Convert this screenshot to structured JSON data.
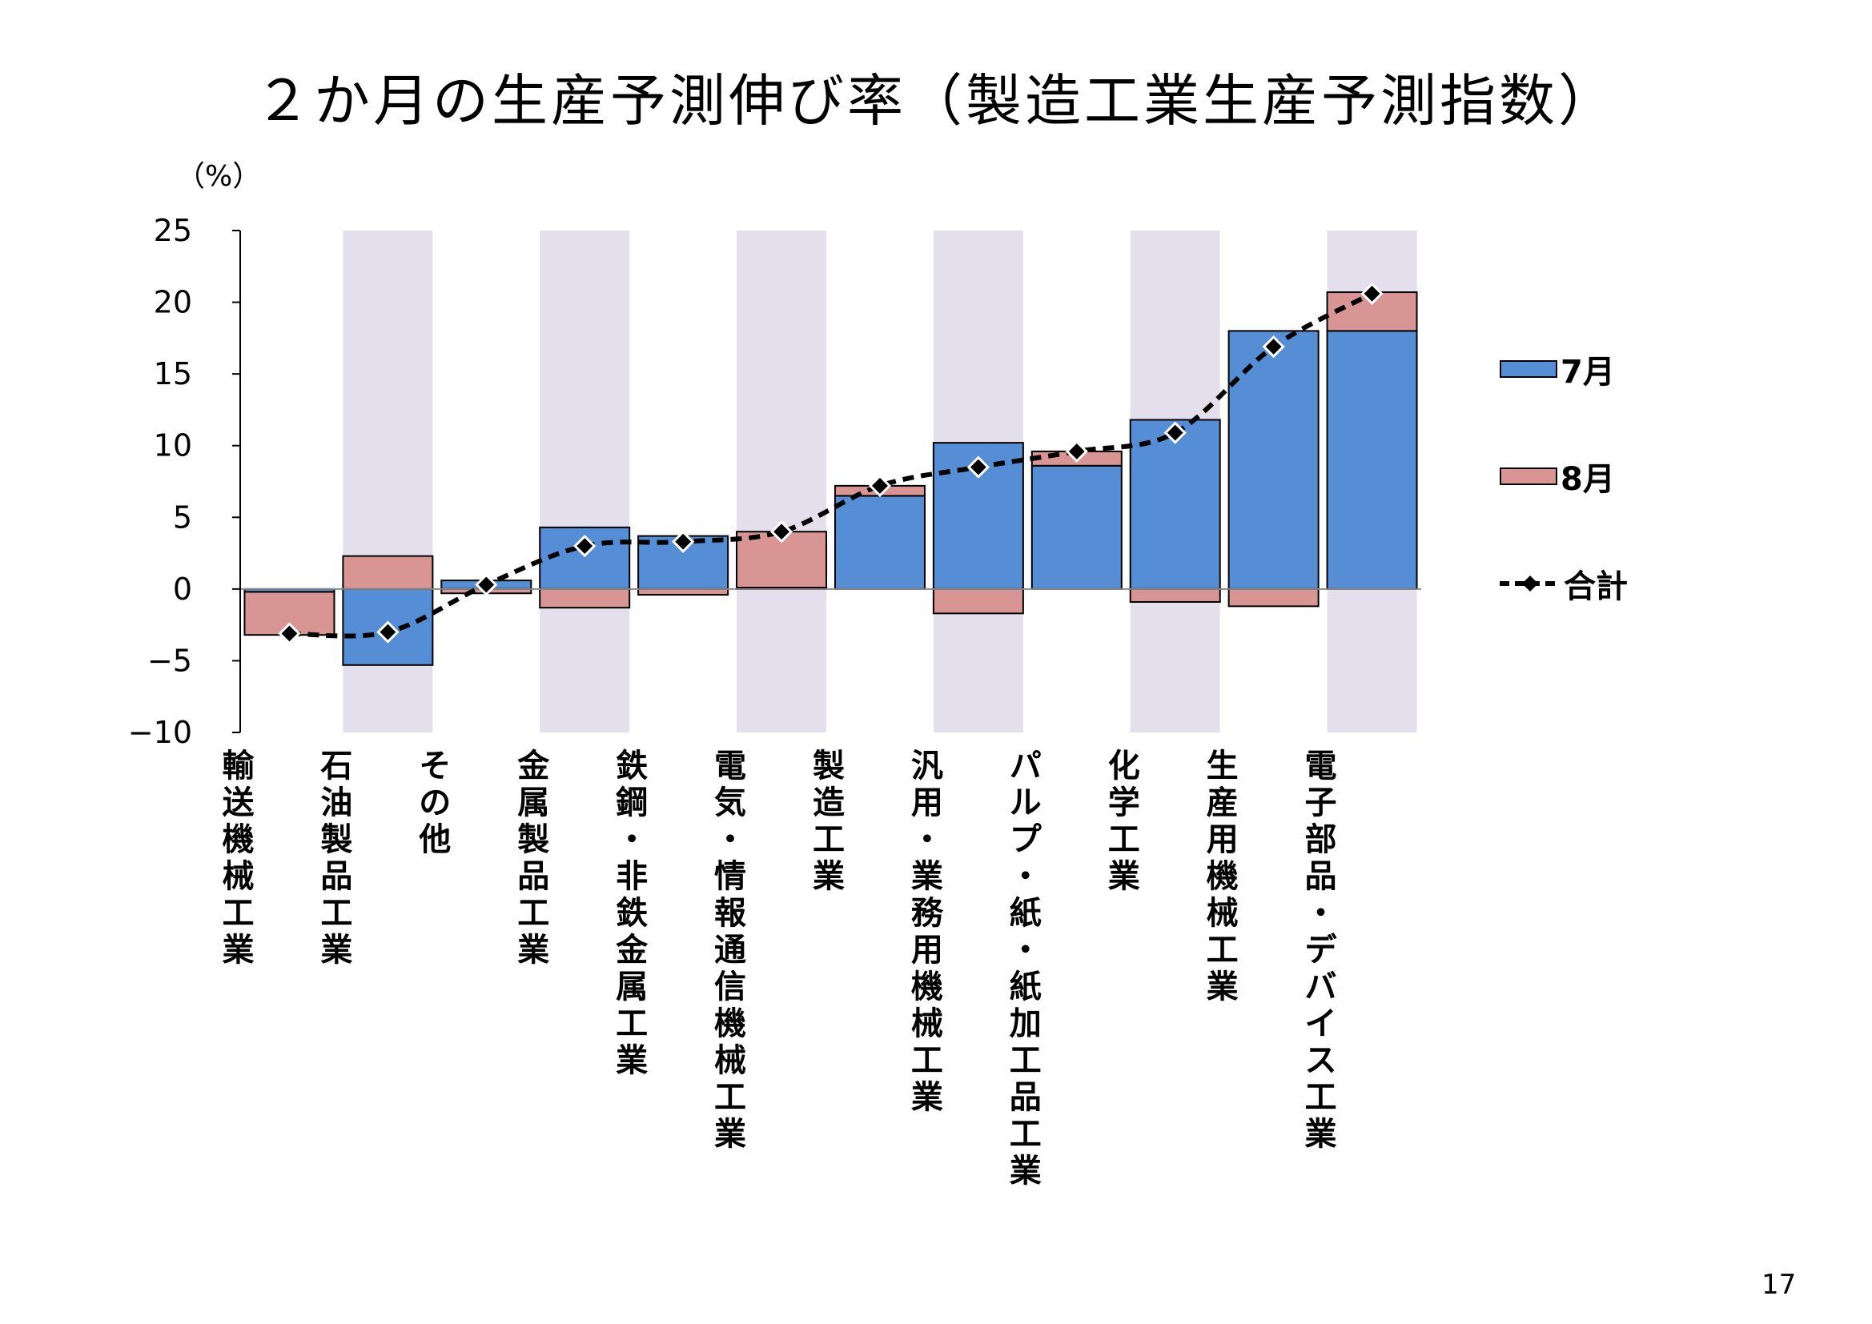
{
  "title": "２か月の生産予測伸び率（製造工業生産予測指数）",
  "page_number": "17",
  "chart_data": {
    "type": "bar",
    "title": "２か月の生産予測伸び率（製造工業生産予測指数）",
    "ylabel": "（%）",
    "ylim": [
      -10,
      25
    ],
    "yticks": [
      25,
      20,
      15,
      10,
      5,
      0,
      -5,
      -10
    ],
    "categories": [
      "輸送機械工業",
      "石油製品工業",
      "その他",
      "金属製品工業",
      "鉄鋼・非鉄金属工業",
      "電気・情報通信機械工業",
      "製造工業",
      "汎用・業務用機械工業",
      "パルプ・紙・紙加工品工業",
      "化学工業",
      "生産用機械工業",
      "電子部品・デバイス工業"
    ],
    "shaded_categories": [
      1,
      3,
      5,
      7,
      9,
      11
    ],
    "series": [
      {
        "name": "7月",
        "type": "bar",
        "color": "#558ED5",
        "values": [
          -0.2,
          -5.3,
          0.6,
          4.3,
          3.7,
          0.1,
          6.5,
          10.2,
          8.6,
          11.8,
          18.0,
          18.0
        ]
      },
      {
        "name": "8月",
        "type": "bar",
        "color": "#D99594",
        "values": [
          -3.0,
          2.3,
          -0.3,
          -1.3,
          -0.4,
          3.9,
          0.7,
          -1.7,
          1.0,
          -0.9,
          -1.2,
          2.7
        ]
      },
      {
        "name": "合計",
        "type": "line",
        "style": "dashed",
        "marker": "diamond",
        "color": "#000000",
        "values": [
          -3.1,
          -3.0,
          0.3,
          3.0,
          3.3,
          4.0,
          7.2,
          8.5,
          9.6,
          10.9,
          16.9,
          20.6
        ]
      }
    ],
    "legend": {
      "position": "right"
    },
    "shading_color": "#E4DFEC",
    "grid": false
  }
}
